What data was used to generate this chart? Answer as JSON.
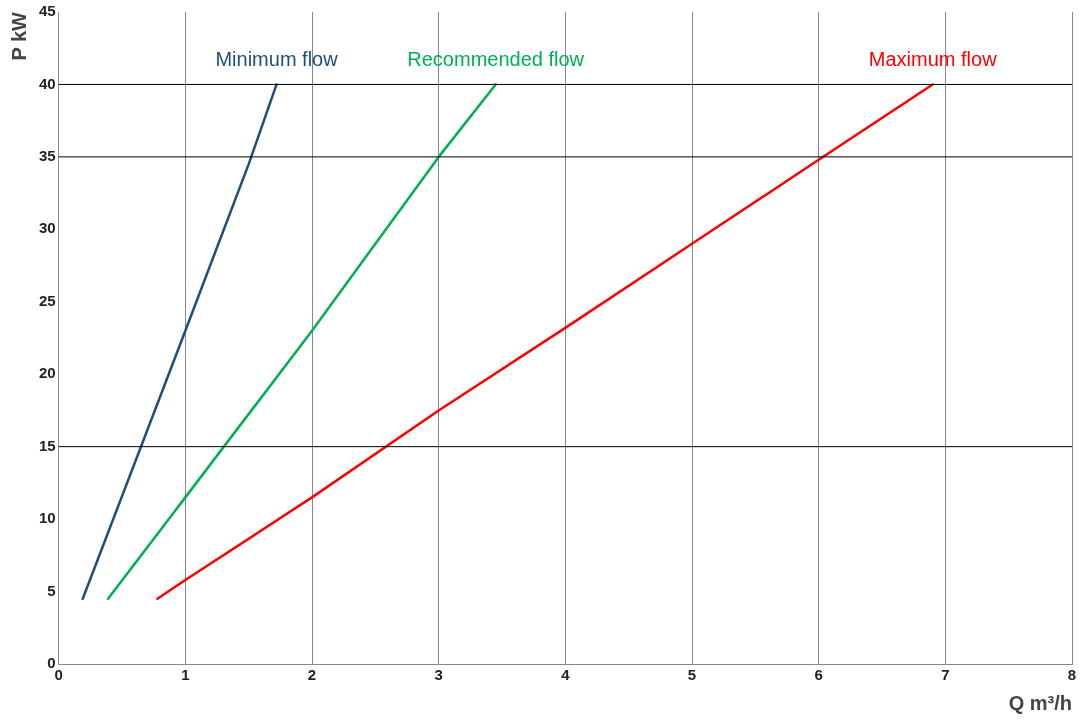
{
  "chart_data": {
    "type": "line",
    "xlabel": "Q m³/h",
    "ylabel": "P kW",
    "xlim": [
      0,
      8
    ],
    "xticks": [
      0,
      1,
      2,
      3,
      4,
      5,
      6,
      7,
      8
    ],
    "ylim": [
      0,
      45
    ],
    "yticks": [
      0,
      5,
      10,
      15,
      20,
      25,
      30,
      35,
      40,
      45
    ],
    "grid": "x",
    "legend": false,
    "marker": "none",
    "line_style": "solid",
    "ref_lines": [
      {
        "axis": "y",
        "value": 15,
        "color": "#000000"
      },
      {
        "axis": "y",
        "value": 35,
        "color": "#000000"
      },
      {
        "axis": "y",
        "value": 40,
        "color": "#000000"
      }
    ],
    "series": [
      {
        "name": "Minimum flow",
        "color": "#1f4e79",
        "x": [
          0.19,
          1,
          1.5,
          1.72
        ],
        "values": [
          4.5,
          23,
          34.5,
          40
        ]
      },
      {
        "name": "Recommended flow",
        "color": "#00b050",
        "x": [
          0.39,
          1,
          2,
          3,
          3.45
        ],
        "values": [
          4.5,
          11.5,
          23,
          35,
          40
        ]
      },
      {
        "name": "Maximum flow",
        "color": "#ff0000",
        "x": [
          0.78,
          1,
          2,
          3,
          4,
          5,
          6,
          6.9
        ],
        "values": [
          4.5,
          5.8,
          11.5,
          17.5,
          23.2,
          29,
          34.8,
          40
        ]
      }
    ]
  }
}
